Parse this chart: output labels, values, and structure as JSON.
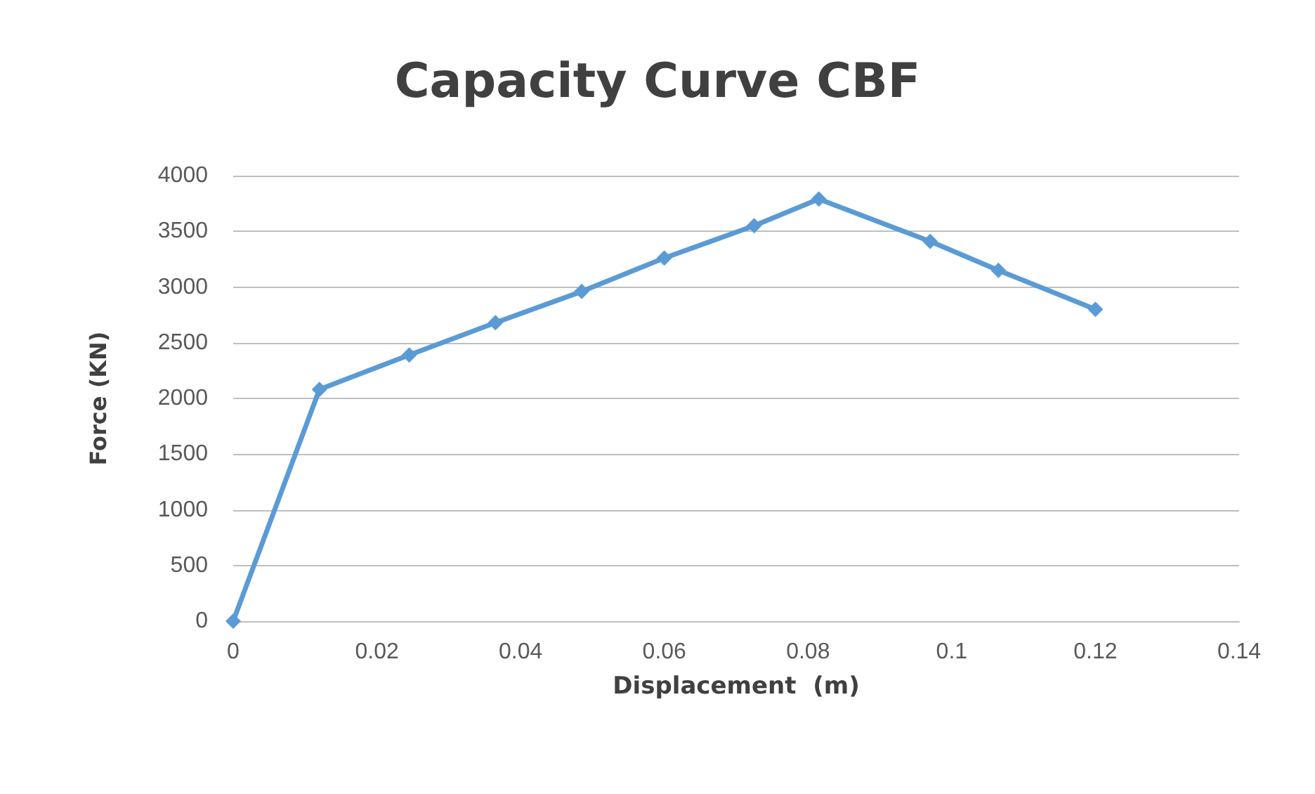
{
  "chart_data": {
    "type": "line",
    "title": "Capacity Curve CBF",
    "xlabel": "Displacement  (m)",
    "ylabel": "Force (KN)",
    "series": [
      {
        "color": "#5b9bd5",
        "x": [
          0,
          0.012,
          0.0245,
          0.0365,
          0.0485,
          0.06,
          0.0725,
          0.0815,
          0.097,
          0.1065,
          0.12
        ],
        "values": [
          0,
          2080,
          2390,
          2680,
          2960,
          3260,
          3550,
          3790,
          3410,
          3150,
          2800
        ]
      }
    ],
    "xlim": [
      0,
      0.14
    ],
    "xticks": [
      0,
      0.02,
      0.04,
      0.06,
      0.08,
      0.1,
      0.12,
      0.14
    ],
    "ylim": [
      0,
      4000
    ],
    "yticks": [
      0,
      500,
      1000,
      1500,
      2000,
      2500,
      3000,
      3500,
      4000
    ],
    "grid": "y",
    "marker": "diamond",
    "line_style": "solid"
  }
}
